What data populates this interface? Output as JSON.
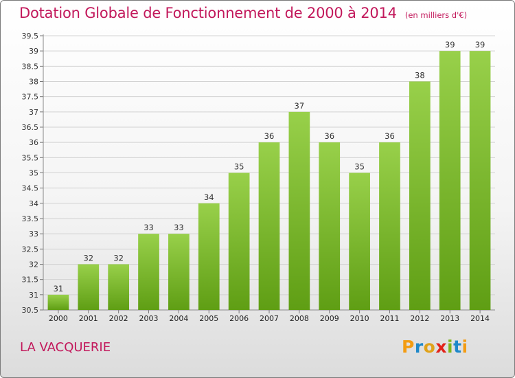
{
  "header": {
    "title": "Dotation Globale de Fonctionnement de 2000 à 2014",
    "unit": "(en milliers d'€)"
  },
  "footer": {
    "commune": "LA VACQUERIE",
    "logo_letters": [
      "P",
      "r",
      "o",
      "x",
      "i",
      "t",
      "i"
    ],
    "logo_colors": [
      "#f39c12",
      "#1e88c9",
      "#e0a21a",
      "#e2231a",
      "#7fb51b",
      "#1e88c9",
      "#f39c12"
    ]
  },
  "chart_data": {
    "type": "bar",
    "title": "Dotation Globale de Fonctionnement de 2000 à 2014",
    "subtitle": "(en milliers d'€)",
    "categories": [
      "2000",
      "2001",
      "2002",
      "2003",
      "2004",
      "2005",
      "2006",
      "2007",
      "2008",
      "2009",
      "2010",
      "2011",
      "2012",
      "2013",
      "2014"
    ],
    "values": [
      31,
      32,
      32,
      33,
      33,
      34,
      35,
      36,
      37,
      36,
      35,
      36,
      38,
      39,
      39
    ],
    "ylim": [
      30.5,
      39.5
    ],
    "yticks": [
      "30.5",
      "31",
      "31.5",
      "32",
      "32.5",
      "33",
      "33.5",
      "34",
      "34.5",
      "35",
      "35.5",
      "36",
      "36.5",
      "37",
      "37.5",
      "38",
      "38.5",
      "39",
      "39.5"
    ],
    "grid": true,
    "bar_color": "#8cc63f"
  }
}
